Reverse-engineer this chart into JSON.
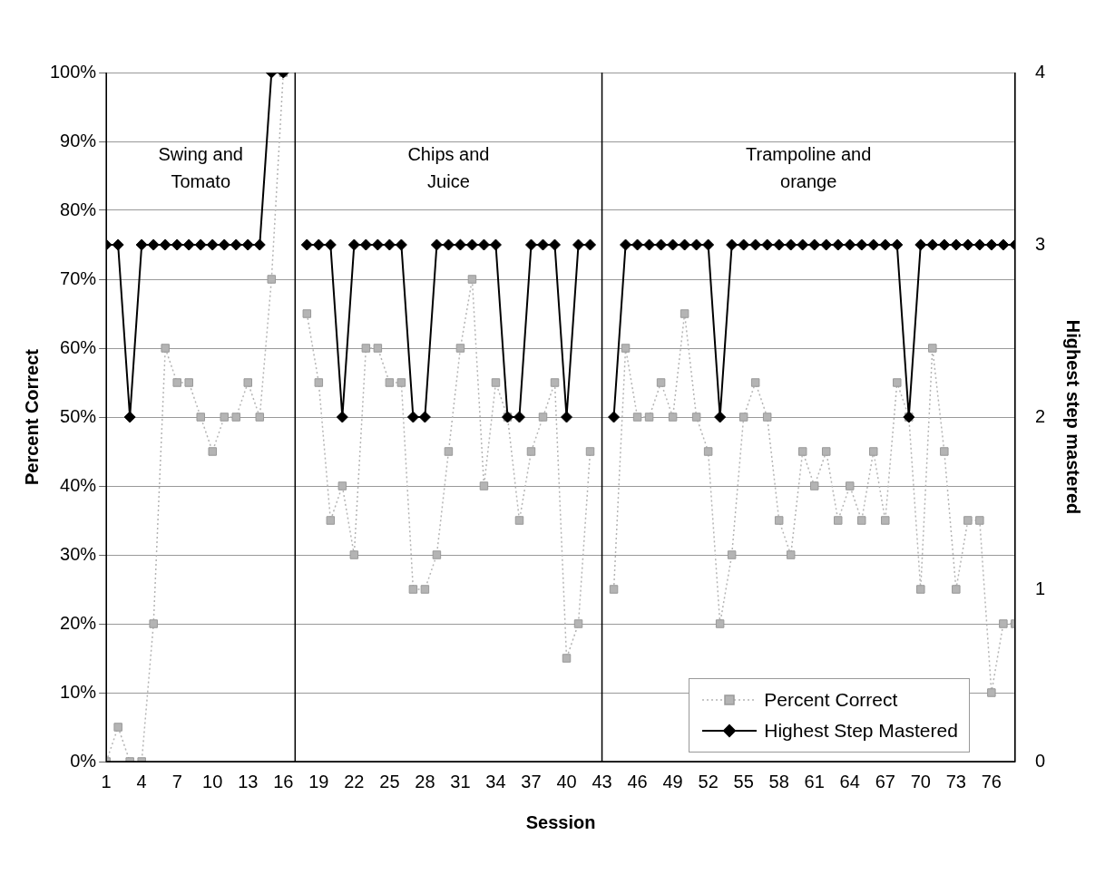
{
  "chart_data": {
    "type": "line",
    "xlabel": "Session",
    "ylabel": "Percent Correct",
    "y2label": "Highest step mastered",
    "x": [
      1,
      2,
      3,
      4,
      5,
      6,
      7,
      8,
      9,
      10,
      11,
      12,
      13,
      14,
      15,
      16,
      17,
      18,
      19,
      20,
      21,
      22,
      23,
      24,
      25,
      26,
      27,
      28,
      29,
      30,
      31,
      32,
      33,
      34,
      35,
      36,
      37,
      38,
      39,
      40,
      41,
      42,
      43,
      44,
      45,
      46,
      47,
      48,
      49,
      50,
      51,
      52,
      53,
      54,
      55,
      56,
      57,
      58,
      59,
      60,
      61,
      62,
      63,
      64,
      65,
      66,
      67,
      68,
      69,
      70,
      71,
      72,
      73,
      74,
      75,
      76,
      77,
      78
    ],
    "series": [
      {
        "name": "Percent Correct",
        "color": "#b4b4b4",
        "marker": "square",
        "line_style": "dotted",
        "values": [
          0,
          5,
          0,
          0,
          20,
          60,
          55,
          55,
          50,
          45,
          50,
          50,
          55,
          50,
          70,
          100,
          null,
          65,
          55,
          35,
          40,
          30,
          60,
          60,
          55,
          55,
          25,
          25,
          30,
          45,
          60,
          70,
          40,
          55,
          50,
          35,
          45,
          50,
          55,
          15,
          20,
          45,
          null,
          25,
          60,
          50,
          50,
          55,
          50,
          65,
          50,
          45,
          20,
          30,
          50,
          55,
          50,
          35,
          30,
          45,
          40,
          45,
          35,
          40,
          35,
          45,
          35,
          55,
          50,
          25,
          60,
          45,
          25,
          35,
          35,
          10,
          20,
          20
        ]
      },
      {
        "name": "Highest Step Mastered",
        "color": "#000000",
        "marker": "diamond",
        "line_style": "solid",
        "axis": "y2",
        "values": [
          3,
          3,
          2,
          3,
          3,
          3,
          3,
          3,
          3,
          3,
          3,
          3,
          3,
          3,
          4,
          4,
          null,
          3,
          3,
          3,
          2,
          3,
          3,
          3,
          3,
          3,
          2,
          2,
          3,
          3,
          3,
          3,
          3,
          3,
          2,
          2,
          3,
          3,
          3,
          2,
          3,
          3,
          null,
          2,
          3,
          3,
          3,
          3,
          3,
          3,
          3,
          3,
          2,
          3,
          3,
          3,
          3,
          3,
          3,
          3,
          3,
          3,
          3,
          3,
          3,
          3,
          3,
          3,
          2,
          3,
          3,
          3,
          3,
          3,
          3,
          3,
          3,
          3
        ]
      }
    ],
    "xlim": [
      1,
      78
    ],
    "xticks": [
      1,
      4,
      7,
      10,
      13,
      16,
      19,
      22,
      25,
      28,
      31,
      34,
      37,
      40,
      43,
      46,
      49,
      52,
      55,
      58,
      61,
      64,
      67,
      70,
      73,
      76
    ],
    "ylim": [
      0,
      100
    ],
    "yticks": [
      {
        "value": 0,
        "label": "0%"
      },
      {
        "value": 10,
        "label": "10%"
      },
      {
        "value": 20,
        "label": "20%"
      },
      {
        "value": 30,
        "label": "30%"
      },
      {
        "value": 40,
        "label": "40%"
      },
      {
        "value": 50,
        "label": "50%"
      },
      {
        "value": 60,
        "label": "60%"
      },
      {
        "value": 70,
        "label": "70%"
      },
      {
        "value": 80,
        "label": "80%"
      },
      {
        "value": 90,
        "label": "90%"
      },
      {
        "value": 100,
        "label": "100%"
      }
    ],
    "y2lim": [
      0,
      4
    ],
    "y2ticks": [
      0,
      1,
      2,
      3,
      4
    ],
    "ref_lines": [
      {
        "axis": "x",
        "value": 17,
        "color": "#000000"
      },
      {
        "axis": "x",
        "value": 43,
        "color": "#000000"
      }
    ],
    "annotations": [
      "Swing and\nTomato",
      "Chips and\nJuice",
      "Trampoline and\norange"
    ],
    "grid": "y",
    "legend": "bottom right"
  }
}
